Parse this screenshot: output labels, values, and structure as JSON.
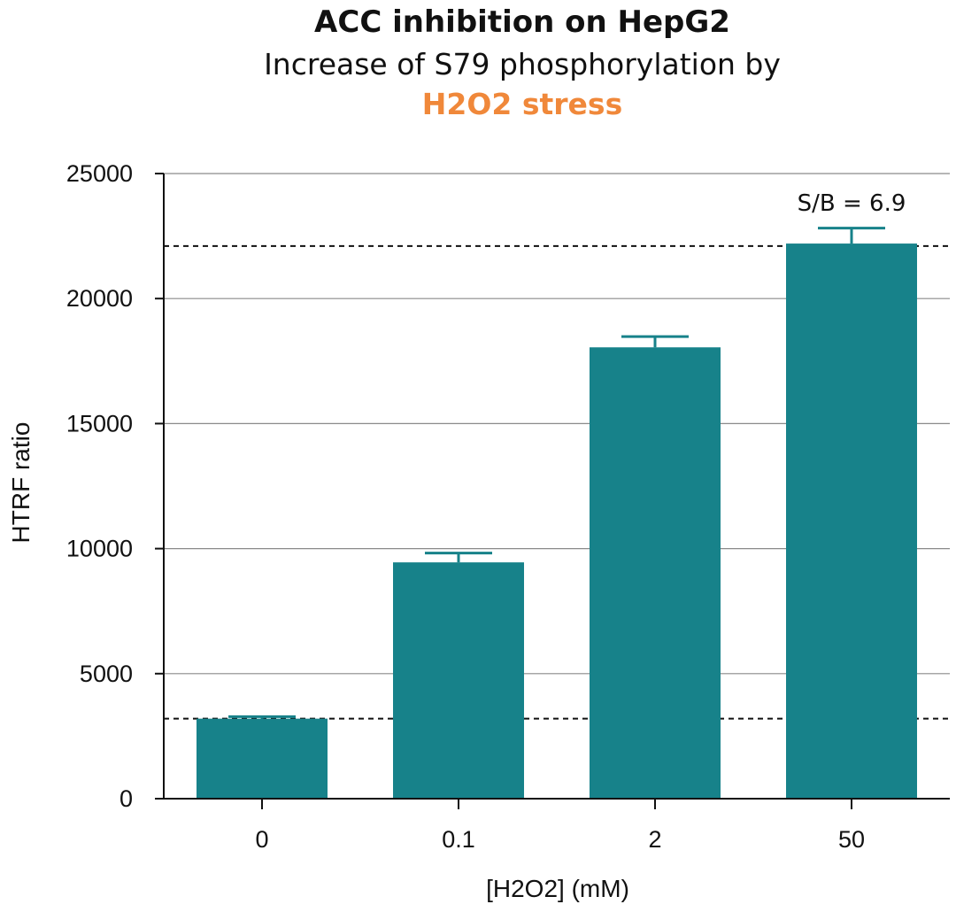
{
  "chart_data": {
    "type": "bar",
    "title": "ACC inhibition on HepG2",
    "subtitle": "Increase of S79 phosphorylation by",
    "subtitle_highlight": "H2O2 stress",
    "highlight_color": "#F0883A",
    "xlabel": "[H2O2] (mM)",
    "ylabel": "HTRF ratio",
    "categories": [
      "0",
      "0.1",
      "2",
      "50"
    ],
    "values": [
      3200,
      9450,
      18050,
      22200
    ],
    "error_upper": [
      3280,
      9820,
      18480,
      22820
    ],
    "bar_color": "#17828A",
    "ylim": [
      0,
      25000
    ],
    "yticks": [
      "0",
      "5000",
      "10000",
      "15000",
      "20000",
      "25000"
    ],
    "grid": "horizontal",
    "reference_lines": [
      3200,
      22100
    ],
    "annotation": "S/B = 6.9"
  }
}
